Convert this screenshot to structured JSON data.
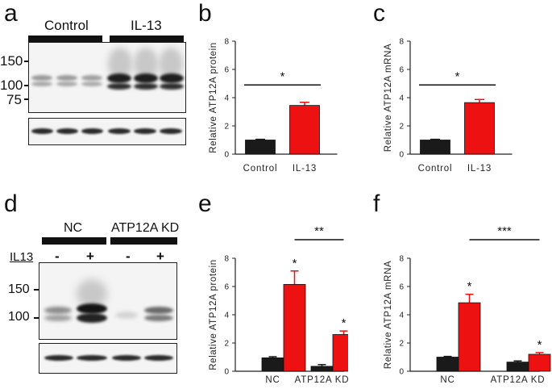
{
  "panels": {
    "a": {
      "letter": "a",
      "groups": [
        "Control",
        "IL-13"
      ],
      "markers": [
        "150",
        "100",
        "75"
      ]
    },
    "d": {
      "letter": "d",
      "groups": [
        "NC",
        "ATP12A KD"
      ],
      "treatment_label": "IL13",
      "lane_signs": [
        "-",
        "+",
        "-",
        "+"
      ],
      "markers": [
        "150",
        "100"
      ]
    }
  },
  "colors": {
    "control": "#1a1a1a",
    "treated": "#ee1111"
  },
  "chart_data": [
    {
      "panel": "b",
      "type": "bar",
      "categories": [
        "Control",
        "IL-13"
      ],
      "values": [
        1.0,
        3.45
      ],
      "errors": [
        0.05,
        0.22
      ],
      "bar_colors": [
        "#1a1a1a",
        "#ee1111"
      ],
      "ylabel": "Relative ATP12A protein",
      "ylim": [
        0,
        8
      ],
      "yticks": [
        "0",
        "2",
        "4",
        "6",
        "8"
      ],
      "annotations": [
        {
          "text": "*",
          "between": [
            0,
            1
          ]
        }
      ]
    },
    {
      "panel": "c",
      "type": "bar",
      "categories": [
        "Control",
        "IL-13"
      ],
      "values": [
        1.0,
        3.65
      ],
      "errors": [
        0.05,
        0.22
      ],
      "bar_colors": [
        "#1a1a1a",
        "#ee1111"
      ],
      "ylabel": "Relative ATP12A mRNA",
      "ylim": [
        0,
        8
      ],
      "yticks": [
        "0",
        "2",
        "4",
        "6",
        "8"
      ],
      "annotations": [
        {
          "text": "*",
          "between": [
            0,
            1
          ]
        }
      ]
    },
    {
      "panel": "e",
      "type": "bar",
      "categories": [
        "NC",
        "ATP12A KD"
      ],
      "series": [
        {
          "values": [
            0.95,
            0.35
          ],
          "errors": [
            0.08,
            0.12
          ],
          "color": "#1a1a1a"
        },
        {
          "values": [
            6.15,
            2.6
          ],
          "errors": [
            0.95,
            0.25
          ],
          "color": "#ee1111",
          "marks": [
            "*",
            "*"
          ]
        }
      ],
      "ylabel": "Relative ATP12A protein",
      "ylim": [
        0,
        8
      ],
      "yticks": [
        "0",
        "2",
        "4",
        "6",
        "8"
      ],
      "annotations": [
        {
          "text": "**",
          "between": [
            "NC",
            "ATP12A KD"
          ]
        }
      ]
    },
    {
      "panel": "f",
      "type": "bar",
      "categories": [
        "NC",
        "ATP12A KD"
      ],
      "series": [
        {
          "values": [
            1.0,
            0.65
          ],
          "errors": [
            0.05,
            0.08
          ],
          "color": "#1a1a1a"
        },
        {
          "values": [
            4.85,
            1.2
          ],
          "errors": [
            0.6,
            0.12
          ],
          "color": "#ee1111",
          "marks": [
            "*",
            "*"
          ]
        }
      ],
      "ylabel": "Relative ATP12A mRNA",
      "ylim": [
        0,
        8
      ],
      "yticks": [
        "0",
        "2",
        "4",
        "6",
        "8"
      ],
      "annotations": [
        {
          "text": "***",
          "between": [
            "NC",
            "ATP12A KD"
          ]
        }
      ]
    }
  ]
}
